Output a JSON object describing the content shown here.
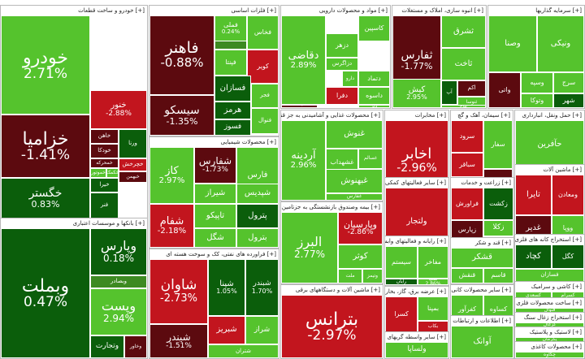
{
  "colors": {
    "strong_up": "#2f9e0f",
    "up": "#55c32d",
    "dark_up": "#0b5e0b",
    "neutral": "#3d8a22",
    "down": "#c2151e",
    "dark_down": "#5c0a0f"
  },
  "sectors": [
    {
      "name": "خودرو و ساخت قطعات",
      "tiles": [
        {
          "name": "خودرو",
          "pct": "2.71%",
          "color": "up"
        },
        {
          "name": "خزامیا",
          "pct": "-1.41%",
          "color": "dark_down"
        },
        {
          "name": "خنور",
          "pct": "-2.88%",
          "color": "down"
        },
        {
          "name": "خگستر",
          "pct": "0.83%",
          "color": "dark_up"
        },
        {
          "name": "ورنا",
          "pct": "",
          "color": "dark_up"
        },
        {
          "name": "خمحرکه",
          "pct": "",
          "color": "dark_down"
        },
        {
          "name": "خچرخش",
          "pct": "",
          "color": "down"
        },
        {
          "name": "خاهن",
          "pct": "",
          "color": "dark_down"
        },
        {
          "name": "خودکا",
          "pct": "",
          "color": "dark_down"
        },
        {
          "name": "خموتور",
          "pct": "",
          "color": "up"
        },
        {
          "name": "خکمک",
          "pct": "",
          "color": "up"
        },
        {
          "name": "خبهمن",
          "pct": "",
          "color": "dark_down"
        },
        {
          "name": "خیرا",
          "pct": "",
          "color": "dark_up"
        },
        {
          "name": "فنر",
          "pct": "",
          "color": "dark_up"
        }
      ]
    },
    {
      "name": "بانکها و موسسات اعتباری",
      "tiles": [
        {
          "name": "وبملت",
          "pct": "0.47%",
          "color": "dark_up"
        },
        {
          "name": "وپارس",
          "pct": "0.18%",
          "color": "dark_up"
        },
        {
          "name": "وبصادر",
          "pct": "",
          "color": "neutral"
        },
        {
          "name": "وپست",
          "pct": "2.94%",
          "color": "up"
        },
        {
          "name": "وتجارت",
          "pct": "",
          "color": "dark_up"
        },
        {
          "name": "وخاور",
          "pct": "",
          "color": "dark_down"
        }
      ]
    },
    {
      "name": "فلزات اساسی",
      "tiles": [
        {
          "name": "فولاد",
          "pct": "",
          "color": "neutral"
        },
        {
          "name": "فملی",
          "pct": "0.24%",
          "color": "up"
        },
        {
          "name": "فخاس",
          "pct": "",
          "color": "up"
        },
        {
          "name": "فاهنر",
          "pct": "-0.88%",
          "color": "dark_down"
        },
        {
          "name": "فپنتا",
          "pct": "",
          "color": "up"
        },
        {
          "name": "کویر",
          "pct": "",
          "color": "down"
        },
        {
          "name": "فسازان",
          "pct": "",
          "color": "dark_up"
        },
        {
          "name": "فجر",
          "pct": "",
          "color": "up"
        },
        {
          "name": "فنوال",
          "pct": "",
          "color": "up"
        },
        {
          "name": "سیسکو",
          "pct": "-1.35%",
          "color": "dark_down"
        },
        {
          "name": "هرمز",
          "pct": "",
          "color": "dark_up"
        },
        {
          "name": "فسوز",
          "pct": "",
          "color": "dark_up"
        }
      ]
    },
    {
      "name": "مواد و محصولات دارویی",
      "tiles": [
        {
          "name": "دقاضی",
          "pct": "2.89%",
          "color": "up"
        },
        {
          "name": "کاسپین",
          "pct": "",
          "color": "up"
        },
        {
          "name": "دزهر",
          "pct": "",
          "color": "up"
        },
        {
          "name": "دزاگرس",
          "pct": "",
          "color": "up"
        },
        {
          "name": "دارو",
          "pct": "",
          "color": "up"
        },
        {
          "name": "برکت",
          "pct": "-0.18%",
          "color": "dark_down"
        },
        {
          "name": "دتماد",
          "pct": "",
          "color": "up"
        },
        {
          "name": "دفرا",
          "pct": "",
          "color": "down"
        },
        {
          "name": "داسوه",
          "pct": "",
          "color": "up"
        },
        {
          "name": "دلر",
          "pct": "",
          "color": "up"
        }
      ]
    },
    {
      "name": "انبوه سازی، املاک و مستغلات",
      "tiles": [
        {
          "name": "ثفارس",
          "pct": "-1.77%",
          "color": "dark_down"
        },
        {
          "name": "ثشرق",
          "pct": "",
          "color": "up"
        },
        {
          "name": "ثاخت",
          "pct": "",
          "color": "up"
        },
        {
          "name": "کیش",
          "pct": "2.95%",
          "color": "up"
        },
        {
          "name": "آپ",
          "pct": "",
          "color": "dark_up"
        },
        {
          "name": "اکم",
          "pct": "",
          "color": "dark_down"
        },
        {
          "name": "ثنوسا",
          "pct": "",
          "color": "up"
        },
        {
          "name": "ثباغ",
          "pct": "",
          "color": "up"
        }
      ]
    },
    {
      "name": "سرمایه گذاریها",
      "tiles": [
        {
          "name": "وصنا",
          "pct": "",
          "color": "up"
        },
        {
          "name": "ونیکی",
          "pct": "",
          "color": "up"
        },
        {
          "name": "وسپه",
          "pct": "",
          "color": "up"
        },
        {
          "name": "سرج",
          "pct": "",
          "color": "up"
        },
        {
          "name": "شهر",
          "pct": "",
          "color": "dark_up"
        },
        {
          "name": "وتوکا",
          "pct": "",
          "color": "up"
        },
        {
          "name": "واتی",
          "pct": "",
          "color": "dark_down"
        }
      ]
    },
    {
      "name": "محصولات غذایی و آشامیدنی به جز قند و شکر",
      "tiles": [
        {
          "name": "آردینه",
          "pct": "2.96%",
          "color": "up"
        },
        {
          "name": "غنوش",
          "pct": "",
          "color": "up"
        },
        {
          "name": "غشهداب",
          "pct": "",
          "color": "up"
        },
        {
          "name": "غبهنوش",
          "pct": "",
          "color": "up"
        },
        {
          "name": "غسالم",
          "pct": "",
          "color": "up"
        },
        {
          "name": "غفارس",
          "pct": "",
          "color": "up"
        },
        {
          "name": "غدام",
          "pct": "",
          "color": "dark_down"
        }
      ]
    },
    {
      "name": "مخابرات",
      "tiles": [
        {
          "name": "اخابر",
          "pct": "-2.96%",
          "color": "down"
        }
      ]
    },
    {
      "name": "سیمان، آهک و گچ",
      "tiles": [
        {
          "name": "سرود",
          "pct": "",
          "color": "down"
        },
        {
          "name": "سباقر",
          "pct": "",
          "color": "down"
        },
        {
          "name": "سفار",
          "pct": "",
          "color": "up"
        },
        {
          "name": "سخزر",
          "pct": "",
          "color": "dark_down"
        },
        {
          "name": "سیلام",
          "pct": "",
          "color": "dark_up"
        }
      ]
    },
    {
      "name": "حمل ونقل، انبارداری",
      "tiles": [
        {
          "name": "حآفرین",
          "pct": "",
          "color": "up"
        },
        {
          "name": "حتوکا",
          "pct": "",
          "color": "up"
        },
        {
          "name": "حسیر",
          "pct": "",
          "color": "dark_down"
        }
      ]
    },
    {
      "name": "محصولات شیمیایی",
      "tiles": [
        {
          "name": "کاز",
          "pct": "2.97%",
          "color": "up"
        },
        {
          "name": "شفارس",
          "pct": "-1.73%",
          "color": "dark_down"
        },
        {
          "name": "فارس",
          "pct": "",
          "color": "up"
        },
        {
          "name": "شیراز",
          "pct": "",
          "color": "up"
        },
        {
          "name": "شپدیس",
          "pct": "",
          "color": "up"
        },
        {
          "name": "تاپیکو",
          "pct": "",
          "color": "up"
        },
        {
          "name": "شگل",
          "pct": "",
          "color": "up"
        },
        {
          "name": "شفام",
          "pct": "-2.18%",
          "color": "down"
        },
        {
          "name": "پترول",
          "pct": "",
          "color": "dark_up"
        },
        {
          "name": "بترول",
          "pct": "",
          "color": "up"
        },
        {
          "name": "قرن",
          "pct": "",
          "color": "dark_up"
        }
      ]
    },
    {
      "name": "فعالیتهای مهندسی، تجزیه، تحلیل و آزمون فنی",
      "tiles": [
        {
          "name": "وصنعت",
          "pct": "",
          "color": "dark_up"
        },
        {
          "name": "وملی",
          "pct": "",
          "color": "up"
        }
      ]
    },
    {
      "name": "سایر فعالیتهای کمکی",
      "tiles": [
        {
          "name": "ولتجار",
          "pct": "",
          "color": "down"
        }
      ]
    },
    {
      "name": "ماشین آلات",
      "tiles": [
        {
          "name": "تایرا",
          "pct": "",
          "color": "down"
        },
        {
          "name": "ومعادن",
          "pct": "",
          "color": "down"
        },
        {
          "name": "غدیر",
          "pct": "",
          "color": "dark_down"
        },
        {
          "name": "ووپا",
          "pct": "",
          "color": "up"
        }
      ]
    },
    {
      "name": "فراورده های نفتی، کک و سوخت هسته ای",
      "tiles": [
        {
          "name": "شاوان",
          "pct": "-2.73%",
          "color": "down"
        },
        {
          "name": "شپنا",
          "pct": "1.05%",
          "color": "dark_up"
        },
        {
          "name": "شبندر",
          "pct": "1.70%",
          "color": "dark_up"
        },
        {
          "name": "شبریز",
          "pct": "",
          "color": "down"
        },
        {
          "name": "شراز",
          "pct": "",
          "color": "up"
        },
        {
          "name": "شتران",
          "pct": "",
          "color": "up"
        },
        {
          "name": "شیندر",
          "pct": "-1.51%",
          "color": "dark_down"
        }
      ]
    },
    {
      "name": "بیمه وصندوق بازنشستگی به جزتامین اج",
      "tiles": [
        {
          "name": "البرز",
          "pct": "2.77%",
          "color": "up"
        },
        {
          "name": "وپارسیان",
          "pct": "-2.86%",
          "color": "down"
        },
        {
          "name": "کوثر",
          "pct": "",
          "color": "up"
        },
        {
          "name": "ملت",
          "pct": "",
          "color": "up"
        },
        {
          "name": "وتیمز",
          "pct": "",
          "color": "up"
        }
      ]
    },
    {
      "name": "زراعت و خدمات",
      "tiles": [
        {
          "name": "فراورش",
          "pct": "",
          "color": "down"
        },
        {
          "name": "زکشت",
          "pct": "",
          "color": "dark_up"
        },
        {
          "name": "زپارس",
          "pct": "",
          "color": "dark_down"
        },
        {
          "name": "زکلا",
          "pct": "",
          "color": "up"
        },
        {
          "name": "زقیام",
          "pct": "",
          "color": "up"
        },
        {
          "name": "سبید",
          "pct": "",
          "color": "up"
        },
        {
          "name": "زماهان",
          "pct": "",
          "color": "dark_up"
        },
        {
          "name": "زاگرس",
          "pct": "",
          "color": "up"
        }
      ]
    },
    {
      "name": "رایانه و فعالیتهای وابسته",
      "tiles": [
        {
          "name": "سیستم",
          "pct": "",
          "color": "up"
        },
        {
          "name": "مفاخر",
          "pct": "",
          "color": "up"
        },
        {
          "name": "رایان",
          "pct": "",
          "color": "dark_up"
        },
        {
          "name": "سپ",
          "pct": "2.86%",
          "color": "up"
        }
      ]
    },
    {
      "name": "استخراج کانه های فلزی",
      "tiles": [
        {
          "name": "کچاد",
          "pct": "",
          "color": "dark_up"
        },
        {
          "name": "کگل",
          "pct": "",
          "color": "dark_up"
        },
        {
          "name": "فسازان",
          "pct": "",
          "color": "up"
        }
      ]
    },
    {
      "name": "قند و شکر",
      "tiles": [
        {
          "name": "قشکر",
          "pct": "",
          "color": "up"
        },
        {
          "name": "قنقش",
          "pct": "",
          "color": "up"
        },
        {
          "name": "قاسم",
          "pct": "",
          "color": "up"
        }
      ]
    },
    {
      "name": "ماشین آلات و دستگاههای برقی",
      "tiles": [
        {
          "name": "بترانس",
          "pct": "-2.97%",
          "color": "down"
        },
        {
          "name": "بالبر",
          "pct": "",
          "color": "up"
        },
        {
          "name": "بنیرو",
          "pct": "",
          "color": "up"
        }
      ]
    },
    {
      "name": "عرضه برق، گاز، بخار",
      "tiles": [
        {
          "name": "کسرا",
          "pct": "",
          "color": "down"
        },
        {
          "name": "بمپنا",
          "pct": "",
          "color": "up"
        },
        {
          "name": "بکاب",
          "pct": "",
          "color": "down"
        }
      ]
    },
    {
      "name": "سایر محصولات کانی",
      "tiles": [
        {
          "name": "کفرآور",
          "pct": "",
          "color": "up"
        },
        {
          "name": "کساوه",
          "pct": "",
          "color": "up"
        }
      ]
    },
    {
      "name": "اطلاعات و ارتباطات",
      "tiles": [
        {
          "name": "آوانک",
          "pct": "",
          "color": "up"
        }
      ]
    },
    {
      "name": "کاشی و سرامیک",
      "tiles": [
        {
          "name": "کسعدی",
          "pct": "",
          "color": "up"
        },
        {
          "name": "کسرام",
          "pct": "",
          "color": "up"
        }
      ]
    },
    {
      "name": "ساخت محصولات فلزی",
      "tiles": [
        {
          "name": "فنوال",
          "pct": "",
          "color": "up"
        }
      ]
    },
    {
      "name": "استخراج زغال سنگ",
      "tiles": [
        {
          "name": "کزغال",
          "pct": "",
          "color": "up"
        }
      ]
    },
    {
      "name": "لاستیک و پلاستیک",
      "tiles": [
        {
          "name": "پکرمان",
          "pct": "",
          "color": "up"
        }
      ]
    },
    {
      "name": "محصولات کاغذی",
      "tiles": [
        {
          "name": "چکاوه",
          "pct": "",
          "color": "up"
        }
      ]
    },
    {
      "name": "سایر واسطه گریهای مالی",
      "tiles": [
        {
          "name": "ولساپا",
          "pct": "",
          "color": "up"
        }
      ]
    }
  ]
}
